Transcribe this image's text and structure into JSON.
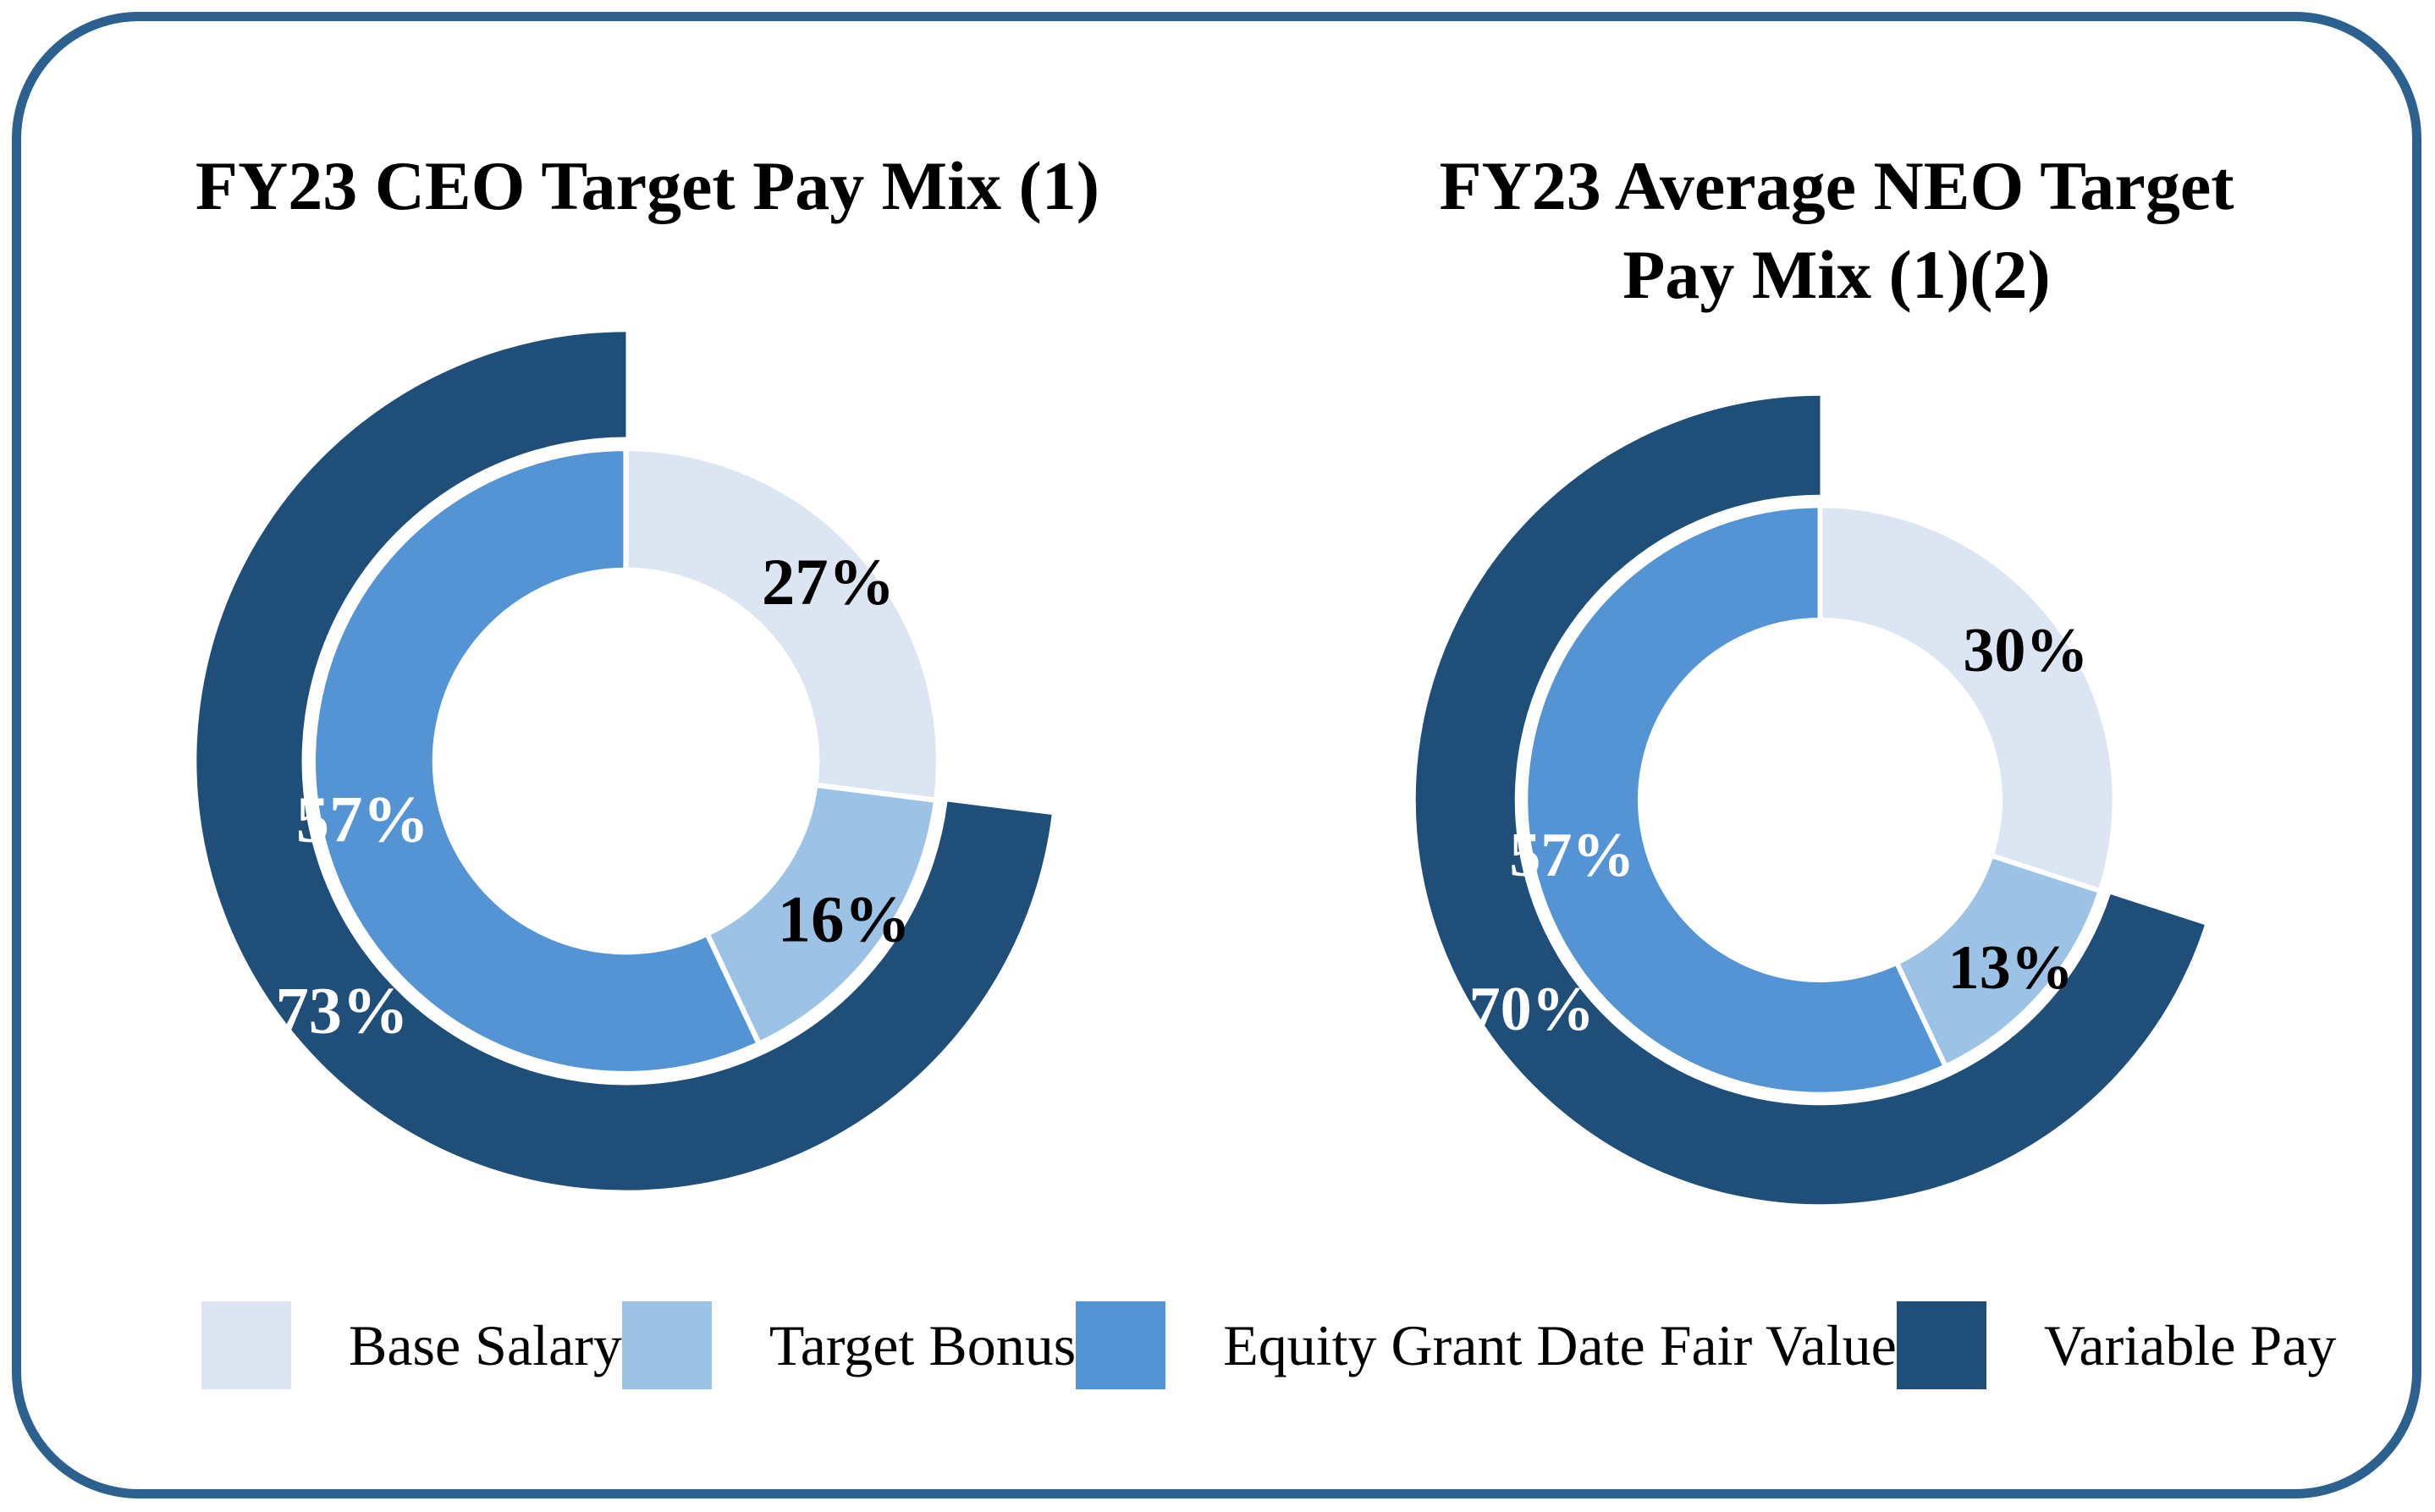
{
  "frame": {
    "border_color": "#2C608F",
    "background": "#FFFFFF"
  },
  "legend": {
    "items": [
      {
        "label": "Base Salary",
        "color": "#DBE6F2"
      },
      {
        "label": "Target Bonus",
        "color": "#9CC3E5"
      },
      {
        "label": "Equity Grant Date Fair Value",
        "color": "#5494D4"
      },
      {
        "label": "Variable Pay",
        "color": "#1F4E79"
      }
    ]
  },
  "chart_data": [
    {
      "type": "pie",
      "variant": "double-ring-donut",
      "title": "FY23 CEO Target Pay Mix (1)",
      "legend_position": "bottom",
      "inner_ring": [
        {
          "label": "Base Salary",
          "pct": 27,
          "display": "27%",
          "color": "#DBE6F2",
          "text_color": "#000000"
        },
        {
          "label": "Target Bonus",
          "pct": 16,
          "display": "16%",
          "color": "#9CC3E5",
          "text_color": "#000000"
        },
        {
          "label": "Equity Grant Date Fair Value",
          "pct": 57,
          "display": "57%",
          "color": "#5494D4",
          "text_color": "#FFFFFF"
        }
      ],
      "outer_ring": {
        "label": "Variable Pay",
        "pct": 73,
        "display": "73%",
        "color": "#1F4E79",
        "text_color": "#FFFFFF"
      }
    },
    {
      "type": "pie",
      "variant": "double-ring-donut",
      "title": "FY23 Average NEO Target Pay Mix (1)(2)",
      "legend_position": "bottom",
      "inner_ring": [
        {
          "label": "Base Salary",
          "pct": 30,
          "display": "30%",
          "color": "#DBE6F2",
          "text_color": "#000000"
        },
        {
          "label": "Target Bonus",
          "pct": 13,
          "display": "13%",
          "color": "#9CC3E5",
          "text_color": "#000000"
        },
        {
          "label": "Equity Grant Date Fair Value",
          "pct": 57,
          "display": "57%",
          "color": "#5494D4",
          "text_color": "#FFFFFF"
        }
      ],
      "outer_ring": {
        "label": "Variable Pay",
        "pct": 70,
        "display": "70%",
        "color": "#1F4E79",
        "text_color": "#FFFFFF"
      }
    }
  ]
}
